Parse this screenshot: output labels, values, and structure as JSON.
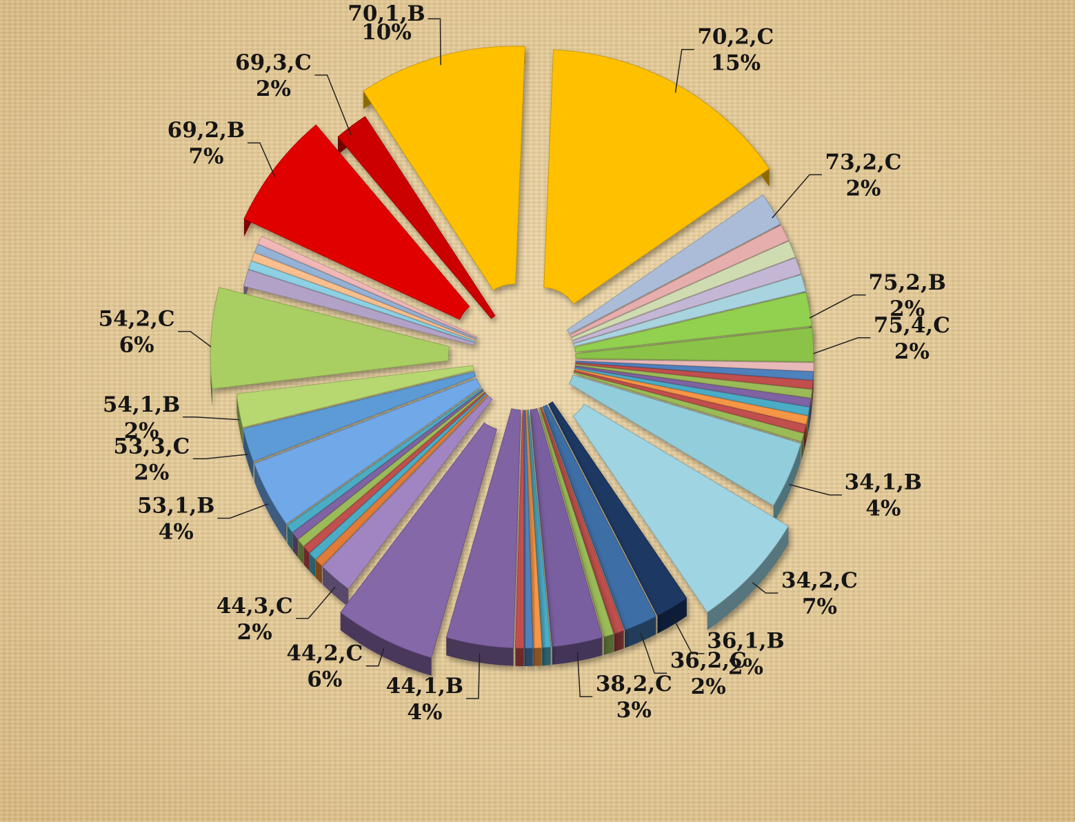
{
  "chart_data": {
    "type": "pie",
    "title": "",
    "style": "exploded 3D pie",
    "legend": "none",
    "slices": [
      {
        "label": "70,2,C",
        "value": 15,
        "pct_text": "15%",
        "color": "#ffc000",
        "labeled": true
      },
      {
        "label": "73,2,C",
        "value": 2,
        "pct_text": "2%",
        "color": "#aabcd8",
        "labeled": true
      },
      {
        "label": "",
        "value": 1,
        "pct_text": "",
        "color": "#e7aeae",
        "labeled": false
      },
      {
        "label": "",
        "value": 1,
        "pct_text": "",
        "color": "#cfdcb2",
        "labeled": false
      },
      {
        "label": "",
        "value": 1,
        "pct_text": "",
        "color": "#c4b7d6",
        "labeled": false
      },
      {
        "label": "",
        "value": 1,
        "pct_text": "",
        "color": "#a8d4e0",
        "labeled": false
      },
      {
        "label": "75,2,B",
        "value": 2,
        "pct_text": "2%",
        "color": "#92d050",
        "labeled": true
      },
      {
        "label": "75,4,C",
        "value": 2,
        "pct_text": "2%",
        "color": "#8bc34a",
        "labeled": true
      },
      {
        "label": "",
        "value": 0.5,
        "pct_text": "",
        "color": "#e9b9b9",
        "labeled": false
      },
      {
        "label": "",
        "value": 0.5,
        "pct_text": "",
        "color": "#4f81bd",
        "labeled": false
      },
      {
        "label": "",
        "value": 0.5,
        "pct_text": "",
        "color": "#c0504d",
        "labeled": false
      },
      {
        "label": "",
        "value": 0.5,
        "pct_text": "",
        "color": "#9bbb59",
        "labeled": false
      },
      {
        "label": "",
        "value": 0.5,
        "pct_text": "",
        "color": "#8064a2",
        "labeled": false
      },
      {
        "label": "",
        "value": 0.5,
        "pct_text": "",
        "color": "#4bacc6",
        "labeled": false
      },
      {
        "label": "",
        "value": 0.5,
        "pct_text": "",
        "color": "#f79646",
        "labeled": false
      },
      {
        "label": "",
        "value": 0.5,
        "pct_text": "",
        "color": "#c0504d",
        "labeled": false
      },
      {
        "label": "",
        "value": 0.5,
        "pct_text": "",
        "color": "#9bbb59",
        "labeled": false
      },
      {
        "label": "34,1,B",
        "value": 4,
        "pct_text": "4%",
        "color": "#92cddc",
        "labeled": true
      },
      {
        "label": "34,2,C",
        "value": 7,
        "pct_text": "7%",
        "color": "#9fd4e2",
        "labeled": true
      },
      {
        "label": "36,1,B",
        "value": 2,
        "pct_text": "2%",
        "color": "#1f3864",
        "labeled": true
      },
      {
        "label": "36,2,C",
        "value": 2,
        "pct_text": "2%",
        "color": "#3d6ea5",
        "labeled": true
      },
      {
        "label": "",
        "value": 0.6,
        "pct_text": "",
        "color": "#c0504d",
        "labeled": false
      },
      {
        "label": "",
        "value": 0.6,
        "pct_text": "",
        "color": "#9bbb59",
        "labeled": false
      },
      {
        "label": "38,2,C",
        "value": 3,
        "pct_text": "3%",
        "color": "#7a5ea0",
        "labeled": true
      },
      {
        "label": "",
        "value": 0.5,
        "pct_text": "",
        "color": "#4bacc6",
        "labeled": false
      },
      {
        "label": "",
        "value": 0.5,
        "pct_text": "",
        "color": "#f79646",
        "labeled": false
      },
      {
        "label": "",
        "value": 0.5,
        "pct_text": "",
        "color": "#4f81bd",
        "labeled": false
      },
      {
        "label": "",
        "value": 0.5,
        "pct_text": "",
        "color": "#c0504d",
        "labeled": false
      },
      {
        "label": "44,1,B",
        "value": 4,
        "pct_text": "4%",
        "color": "#8064a2",
        "labeled": true
      },
      {
        "label": "44,2,C",
        "value": 6,
        "pct_text": "6%",
        "color": "#8567a8",
        "labeled": true
      },
      {
        "label": "44,3,C",
        "value": 2,
        "pct_text": "2%",
        "color": "#a085c2",
        "labeled": true
      },
      {
        "label": "",
        "value": 0.5,
        "pct_text": "",
        "color": "#e07b39",
        "labeled": false
      },
      {
        "label": "",
        "value": 0.5,
        "pct_text": "",
        "color": "#4bacc6",
        "labeled": false
      },
      {
        "label": "",
        "value": 0.5,
        "pct_text": "",
        "color": "#c0504d",
        "labeled": false
      },
      {
        "label": "",
        "value": 0.5,
        "pct_text": "",
        "color": "#9bbb59",
        "labeled": false
      },
      {
        "label": "",
        "value": 0.5,
        "pct_text": "",
        "color": "#8064a2",
        "labeled": false
      },
      {
        "label": "",
        "value": 0.5,
        "pct_text": "",
        "color": "#4bacc6",
        "labeled": false
      },
      {
        "label": "53,1,B",
        "value": 4,
        "pct_text": "4%",
        "color": "#6fa8e8",
        "labeled": true
      },
      {
        "label": "53,3,C",
        "value": 2,
        "pct_text": "2%",
        "color": "#5b9bd5",
        "labeled": true
      },
      {
        "label": "54,1,B",
        "value": 2,
        "pct_text": "2%",
        "color": "#b7d86f",
        "labeled": true
      },
      {
        "label": "54,2,C",
        "value": 6,
        "pct_text": "6%",
        "color": "#a9cf62",
        "labeled": true
      },
      {
        "label": "",
        "value": 1,
        "pct_text": "",
        "color": "#b3a2c7",
        "labeled": false
      },
      {
        "label": "",
        "value": 0.5,
        "pct_text": "",
        "color": "#8ed1e5",
        "labeled": false
      },
      {
        "label": "",
        "value": 0.5,
        "pct_text": "",
        "color": "#fabf8f",
        "labeled": false
      },
      {
        "label": "",
        "value": 0.5,
        "pct_text": "",
        "color": "#95b3d7",
        "labeled": false
      },
      {
        "label": "",
        "value": 0.5,
        "pct_text": "",
        "color": "#f2b8b8",
        "labeled": false
      },
      {
        "label": "69,2,B",
        "value": 7,
        "pct_text": "7%",
        "color": "#e00000",
        "labeled": true
      },
      {
        "label": "69,3,C",
        "value": 2,
        "pct_text": "2%",
        "color": "#cc0000",
        "labeled": true
      },
      {
        "label": "70,1,B",
        "value": 10,
        "pct_text": "10%",
        "color": "#ffc000",
        "labeled": true
      }
    ]
  }
}
